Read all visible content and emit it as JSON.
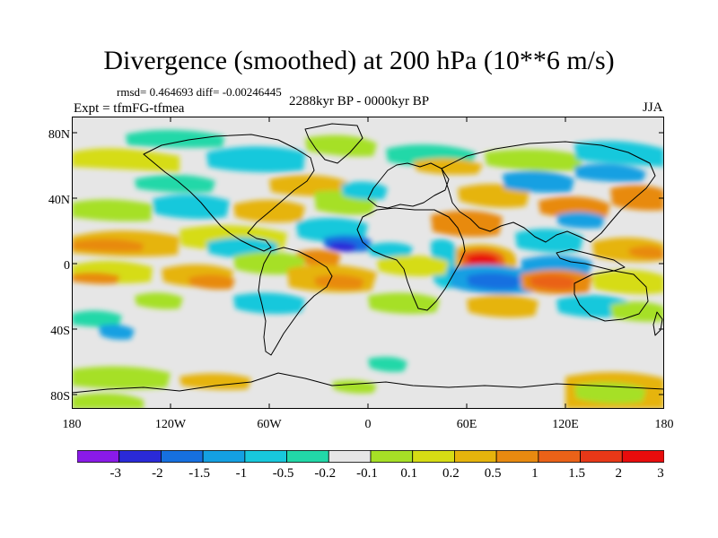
{
  "title": "Divergence (smoothed) at 200 hPa (10**6 m/s)",
  "stats": {
    "rmsd_label": "rmsd=",
    "rmsd": "0.464693",
    "diff_label": "diff=",
    "diff": "-0.00246445"
  },
  "experiment": "Expt = tfmFG-tfmea",
  "period": "2288kyr BP - 0000kyr BP",
  "season": "JJA",
  "lat_ticks": [
    "80N",
    "40N",
    "0",
    "40S",
    "80S"
  ],
  "lon_ticks": [
    "180",
    "120W",
    "60W",
    "0",
    "60E",
    "120E",
    "180"
  ],
  "colorbar": {
    "labels": [
      "-3",
      "-2",
      "-1.5",
      "-1",
      "-0.5",
      "-0.2",
      "-0.1",
      "0.1",
      "0.2",
      "0.5",
      "1",
      "1.5",
      "2",
      "3"
    ],
    "colors": [
      "#8a1ae8",
      "#2a2ad8",
      "#1670e0",
      "#14a0e2",
      "#18c8dc",
      "#22d8a8",
      "#e6e6e6",
      "#a6e026",
      "#d6dc14",
      "#e6b40c",
      "#e88a10",
      "#ea6218",
      "#e83818",
      "#e80c0c"
    ]
  },
  "map_colors": {
    "background": "#e6e6e6",
    "coast": "#000000"
  }
}
